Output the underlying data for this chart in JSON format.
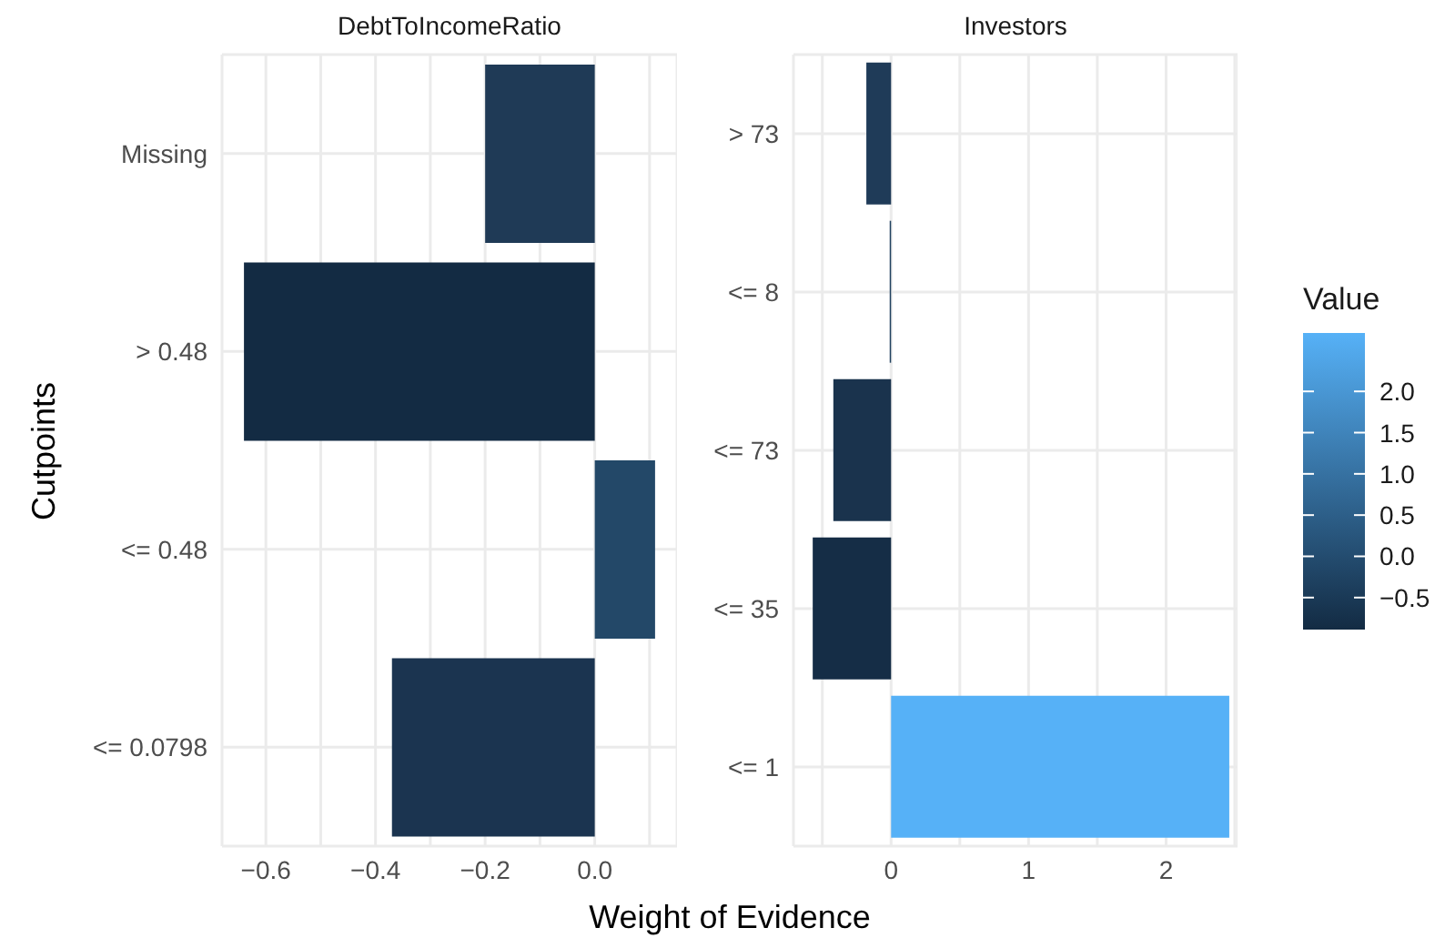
{
  "chart_data": [
    {
      "type": "bar",
      "orientation": "horizontal",
      "title": "DebtToIncomeRatio",
      "ylabel": "Cutpoints",
      "xlabel": "Weight of Evidence",
      "categories": [
        "Missing",
        "> 0.48",
        "<= 0.48",
        "<= 0.0798"
      ],
      "values": [
        -0.2,
        -0.64,
        0.11,
        -0.37
      ],
      "colors": [
        "#1f3a56",
        "#132b43",
        "#234868",
        "#1b3450"
      ],
      "xlim": [
        -0.68,
        0.15
      ],
      "xticks": [
        {
          "value": -0.6,
          "label": "−0.6"
        },
        {
          "value": -0.5,
          "label": null
        },
        {
          "value": -0.4,
          "label": "−0.4"
        },
        {
          "value": -0.3,
          "label": null
        },
        {
          "value": -0.2,
          "label": "−0.2"
        },
        {
          "value": -0.1,
          "label": null
        },
        {
          "value": 0,
          "label": "0.0"
        },
        {
          "value": 0.1,
          "label": null
        }
      ],
      "grid": true
    },
    {
      "type": "bar",
      "orientation": "horizontal",
      "title": "Investors",
      "categories": [
        "> 73",
        "<= 8",
        "<= 73",
        "<= 35",
        "<= 1"
      ],
      "values": [
        -0.18,
        -0.01,
        -0.42,
        -0.57,
        2.46
      ],
      "colors": [
        "#1f3b58",
        "#21425f",
        "#1a334d",
        "#152d46",
        "#56b1f7"
      ],
      "xlim": [
        -0.71,
        2.52
      ],
      "xticks": [
        {
          "value": -0.5,
          "label": null
        },
        0,
        {
          "value": 0.5,
          "label": null
        },
        1,
        {
          "value": 1.5,
          "label": null
        },
        2,
        {
          "value": 2.5,
          "label": null
        }
      ],
      "grid": true,
      "clabel": "Value",
      "clim": [
        -0.64,
        2.46
      ],
      "cticks": [
        {
          "value": -0.5,
          "label": "−0.5"
        },
        {
          "value": 0,
          "label": "0.0"
        },
        {
          "value": 0.5,
          "label": "0.5"
        },
        {
          "value": 1,
          "label": "1.0"
        },
        {
          "value": 1.5,
          "label": "1.5"
        },
        {
          "value": 2,
          "label": "2.0"
        }
      ]
    }
  ]
}
